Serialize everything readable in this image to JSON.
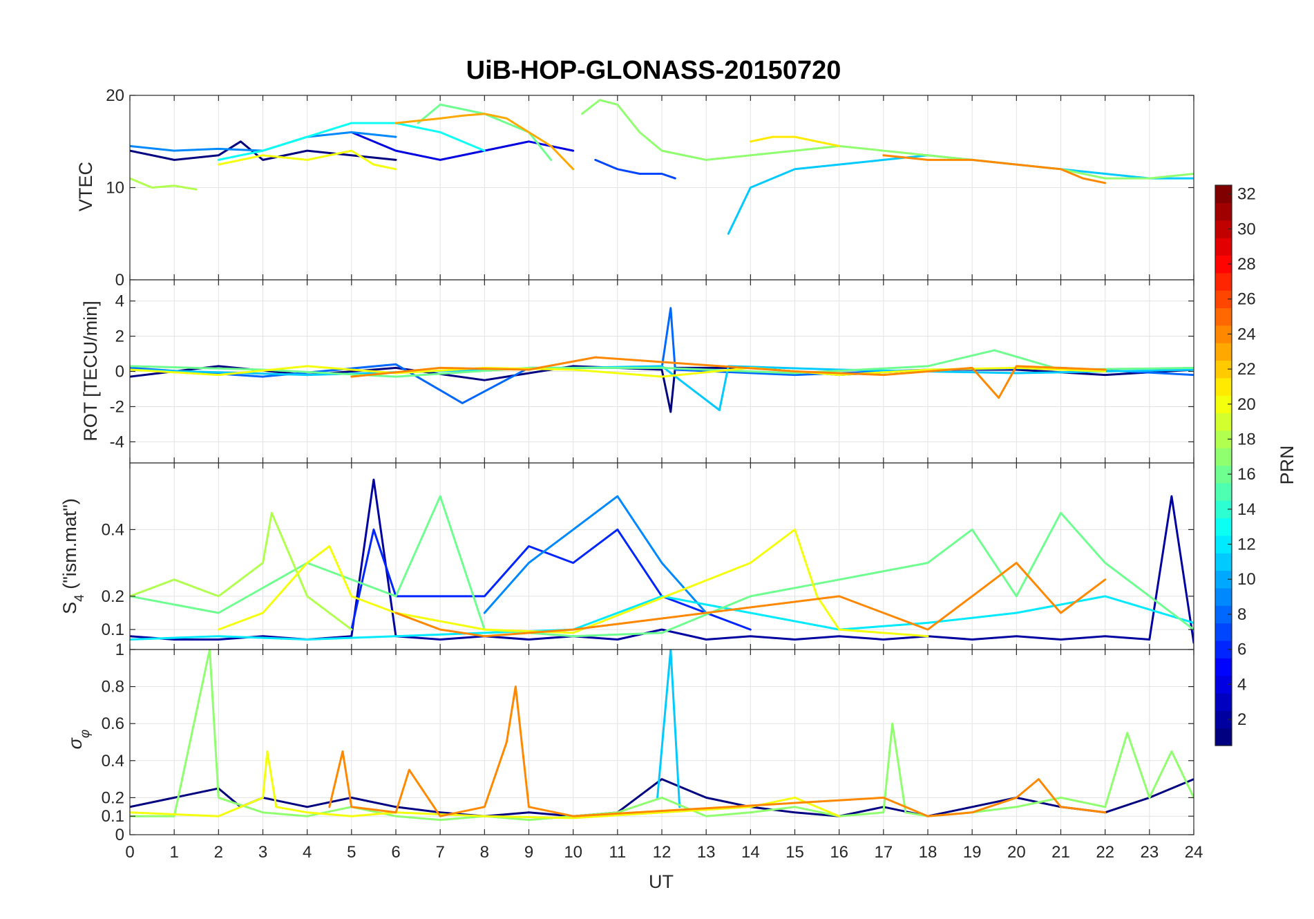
{
  "title": "UiB-HOP-GLONASS-20150720",
  "chart_data": [
    {
      "type": "line",
      "panel": "VTEC",
      "ylabel": "VTEC",
      "xlim": [
        0,
        24
      ],
      "ylim": [
        0,
        20
      ],
      "yticks": [
        0,
        10,
        20
      ],
      "series": [
        {
          "prn": 1,
          "x": [
            0,
            1,
            2,
            2.5,
            3,
            4,
            5,
            6
          ],
          "values": [
            14,
            13,
            13.5,
            15,
            13,
            14,
            13.5,
            13
          ]
        },
        {
          "prn": 4,
          "x": [
            5,
            6,
            7,
            8,
            9,
            10
          ],
          "values": [
            16,
            14,
            13,
            14,
            15,
            14
          ]
        },
        {
          "prn": 7,
          "x": [
            10.5,
            11,
            11.5,
            12,
            12.3
          ],
          "values": [
            13,
            12,
            11.5,
            11.5,
            11
          ]
        },
        {
          "prn": 9,
          "x": [
            0,
            1,
            2,
            3,
            4,
            5,
            6
          ],
          "values": [
            14.5,
            14,
            14.2,
            14,
            15.5,
            16,
            15.5
          ]
        },
        {
          "prn": 11,
          "x": [
            13.5,
            14,
            15,
            16,
            17,
            18,
            19,
            20,
            21,
            22,
            23,
            24
          ],
          "values": [
            5,
            10,
            12,
            12.5,
            13,
            13.5,
            13,
            12.5,
            12,
            11.5,
            11,
            11
          ]
        },
        {
          "prn": 13,
          "x": [
            2,
            3,
            4,
            5,
            6,
            7,
            8
          ],
          "values": [
            13,
            14,
            15.5,
            17,
            17,
            16,
            14
          ]
        },
        {
          "prn": 16,
          "x": [
            6.5,
            7,
            7.5,
            8,
            9,
            9.5
          ],
          "values": [
            17,
            19,
            18.5,
            18,
            16,
            13
          ]
        },
        {
          "prn": 17,
          "x": [
            10.2,
            10.6,
            11,
            11.5,
            12,
            13,
            14,
            15,
            16,
            17,
            18,
            19,
            20,
            21,
            22,
            23,
            24
          ],
          "values": [
            18,
            19.5,
            19,
            16,
            14,
            13,
            13.5,
            14,
            14.5,
            14,
            13.5,
            13,
            12.5,
            12,
            11,
            11,
            11.5
          ]
        },
        {
          "prn": 18,
          "x": [
            0,
            0.5,
            1,
            1.5
          ],
          "values": [
            11,
            10,
            10.2,
            9.8
          ]
        },
        {
          "prn": 20,
          "x": [
            2,
            3,
            4,
            5,
            5.5,
            6
          ],
          "values": [
            12.5,
            13.5,
            13,
            14,
            12.5,
            12
          ]
        },
        {
          "prn": 21,
          "x": [
            14,
            14.5,
            15,
            15.5,
            16
          ],
          "values": [
            15,
            15.5,
            15.5,
            15,
            14.5
          ]
        },
        {
          "prn": 23,
          "x": [
            6,
            7,
            7.5,
            8,
            8.5,
            9,
            9.5,
            10
          ],
          "values": [
            17,
            17.5,
            17.8,
            18,
            17.5,
            16,
            14.5,
            12
          ]
        },
        {
          "prn": 24,
          "x": [
            17,
            18,
            19,
            20,
            21,
            21.5,
            22
          ],
          "values": [
            13.5,
            13,
            13,
            12.5,
            12,
            11,
            10.5
          ]
        }
      ]
    },
    {
      "type": "line",
      "panel": "ROT",
      "ylabel": "ROT [TECU/min]",
      "xlim": [
        0,
        24
      ],
      "ylim": [
        -5.2,
        5.2
      ],
      "yticks": [
        -4,
        -2,
        0,
        2,
        4
      ],
      "series": [
        {
          "prn": 1,
          "x": [
            0,
            2,
            4,
            6,
            8,
            10,
            12,
            12.2,
            12.3,
            14,
            16,
            18,
            20,
            22,
            24
          ],
          "values": [
            -0.3,
            0.3,
            -0.2,
            0.2,
            -0.5,
            0.3,
            0.1,
            -2.3,
            0.2,
            0.2,
            -0.2,
            0.1,
            0.1,
            -0.2,
            0.1
          ]
        },
        {
          "prn": 8,
          "x": [
            0,
            3,
            6,
            7.5,
            9,
            12,
            12.2,
            12.3,
            15,
            18,
            21,
            24
          ],
          "values": [
            0.2,
            -0.3,
            0.4,
            -1.8,
            0.2,
            0.2,
            3.6,
            0.1,
            -0.2,
            0.1,
            0.2,
            -0.2
          ]
        },
        {
          "prn": 11,
          "x": [
            0,
            4,
            8,
            12,
            13.3,
            13.5,
            16,
            20,
            24
          ],
          "values": [
            0.1,
            -0.2,
            0.1,
            0.3,
            -2.2,
            0.3,
            0.1,
            -0.1,
            0.1
          ]
        },
        {
          "prn": 16,
          "x": [
            0,
            3,
            6,
            9,
            12,
            15,
            18,
            19.5,
            21,
            24
          ],
          "values": [
            0.3,
            0.1,
            -0.3,
            0.2,
            0.2,
            -0.1,
            0.3,
            1.2,
            0.1,
            0.2
          ]
        },
        {
          "prn": 20,
          "x": [
            0,
            2,
            4,
            6,
            8,
            10,
            12,
            14,
            16,
            18,
            20,
            22
          ],
          "values": [
            0.1,
            -0.2,
            0.3,
            -0.1,
            0.2,
            0.1,
            -0.3,
            0.2,
            -0.2,
            0.1,
            0.2,
            0.0
          ]
        },
        {
          "prn": 24,
          "x": [
            5,
            7,
            9,
            10.5,
            15,
            17,
            19,
            19.6,
            20,
            22
          ],
          "values": [
            -0.3,
            0.2,
            0.1,
            0.8,
            0.0,
            -0.2,
            0.2,
            -1.5,
            0.3,
            0.1
          ]
        }
      ]
    },
    {
      "type": "line",
      "panel": "S4",
      "ylabel": "S4 (\"ism.mat\")",
      "xlim": [
        0,
        24
      ],
      "ylim": [
        0.04,
        0.6
      ],
      "yticks": [
        0.1,
        0.2,
        0.4
      ],
      "series": [
        {
          "prn": 2,
          "x": [
            0,
            1,
            2,
            3,
            4,
            5,
            5.5,
            6,
            7,
            8,
            9,
            10,
            11,
            12,
            13,
            14,
            15,
            16,
            17,
            18,
            19,
            20,
            21,
            22,
            23,
            23.5,
            24
          ],
          "values": [
            0.08,
            0.07,
            0.07,
            0.08,
            0.07,
            0.08,
            0.55,
            0.08,
            0.07,
            0.08,
            0.07,
            0.08,
            0.07,
            0.1,
            0.07,
            0.08,
            0.07,
            0.08,
            0.07,
            0.08,
            0.07,
            0.08,
            0.07,
            0.08,
            0.07,
            0.5,
            0.06
          ]
        },
        {
          "prn": 6,
          "x": [
            5,
            5.5,
            6,
            8,
            9,
            10,
            11,
            12,
            13,
            14
          ],
          "values": [
            0.1,
            0.4,
            0.2,
            0.2,
            0.35,
            0.3,
            0.4,
            0.2,
            0.15,
            0.1
          ]
        },
        {
          "prn": 9,
          "x": [
            8,
            9,
            10,
            11,
            12,
            13
          ],
          "values": [
            0.15,
            0.3,
            0.4,
            0.5,
            0.3,
            0.15
          ]
        },
        {
          "prn": 12,
          "x": [
            0,
            2,
            4,
            6,
            8,
            10,
            12,
            14,
            16,
            18,
            20,
            22,
            24
          ],
          "values": [
            0.07,
            0.08,
            0.07,
            0.08,
            0.09,
            0.1,
            0.2,
            0.15,
            0.1,
            0.12,
            0.15,
            0.2,
            0.12
          ]
        },
        {
          "prn": 16,
          "x": [
            0,
            2,
            4,
            6,
            7,
            8,
            10,
            12,
            14,
            16,
            18,
            19,
            20,
            21,
            22,
            24
          ],
          "values": [
            0.2,
            0.15,
            0.3,
            0.2,
            0.5,
            0.1,
            0.08,
            0.09,
            0.2,
            0.25,
            0.3,
            0.4,
            0.2,
            0.45,
            0.3,
            0.1
          ]
        },
        {
          "prn": 18,
          "x": [
            0,
            1,
            2,
            3,
            3.2,
            4,
            5
          ],
          "values": [
            0.2,
            0.25,
            0.2,
            0.3,
            0.45,
            0.2,
            0.1
          ]
        },
        {
          "prn": 20,
          "x": [
            2,
            3,
            4,
            4.5,
            5,
            6,
            8,
            10,
            14,
            15,
            15.5,
            16,
            18
          ],
          "values": [
            0.1,
            0.15,
            0.3,
            0.35,
            0.2,
            0.15,
            0.1,
            0.09,
            0.3,
            0.4,
            0.2,
            0.1,
            0.08
          ]
        },
        {
          "prn": 24,
          "x": [
            6,
            7,
            8,
            9,
            10,
            16,
            17,
            18,
            19,
            20,
            21,
            22
          ],
          "values": [
            0.15,
            0.1,
            0.08,
            0.09,
            0.1,
            0.2,
            0.15,
            0.1,
            0.2,
            0.3,
            0.15,
            0.25
          ]
        }
      ]
    },
    {
      "type": "line",
      "panel": "sigma_phi",
      "ylabel": "σφ",
      "xlabel": "UT",
      "xlim": [
        0,
        24
      ],
      "ylim": [
        0,
        1
      ],
      "yticks": [
        0,
        0.1,
        0.2,
        0.4,
        0.6,
        0.8,
        1
      ],
      "xticks": [
        0,
        1,
        2,
        3,
        4,
        5,
        6,
        7,
        8,
        9,
        10,
        11,
        12,
        13,
        14,
        15,
        16,
        17,
        18,
        19,
        20,
        21,
        22,
        23,
        24
      ],
      "series": [
        {
          "prn": 1,
          "x": [
            0,
            1,
            2,
            2.5,
            3,
            4,
            5,
            6,
            7,
            8,
            9,
            10,
            11,
            12,
            13,
            14,
            15,
            16,
            17,
            18,
            19,
            20,
            21,
            22,
            23,
            24
          ],
          "values": [
            0.15,
            0.2,
            0.25,
            0.15,
            0.2,
            0.15,
            0.2,
            0.15,
            0.12,
            0.1,
            0.12,
            0.1,
            0.12,
            0.3,
            0.2,
            0.15,
            0.12,
            0.1,
            0.15,
            0.1,
            0.15,
            0.2,
            0.15,
            0.12,
            0.2,
            0.3
          ]
        },
        {
          "prn": 11,
          "x": [
            11.9,
            12.2,
            12.4
          ],
          "values": [
            0.2,
            1.0,
            0.15
          ]
        },
        {
          "prn": 17,
          "x": [
            0,
            1,
            1.8,
            2,
            3,
            4,
            5,
            6,
            7,
            8,
            9,
            10,
            11,
            12,
            13,
            14,
            15,
            16,
            17,
            17.2,
            17.5,
            18,
            19,
            20,
            21,
            22,
            22.5,
            23,
            23.5,
            24
          ],
          "values": [
            0.1,
            0.1,
            1.0,
            0.2,
            0.12,
            0.1,
            0.15,
            0.1,
            0.08,
            0.1,
            0.08,
            0.1,
            0.12,
            0.2,
            0.1,
            0.12,
            0.15,
            0.1,
            0.12,
            0.6,
            0.12,
            0.1,
            0.12,
            0.15,
            0.2,
            0.15,
            0.55,
            0.2,
            0.45,
            0.2
          ]
        },
        {
          "prn": 20,
          "x": [
            0,
            2,
            3,
            3.1,
            3.3,
            4,
            5,
            6,
            8,
            10,
            14,
            15,
            16
          ],
          "values": [
            0.12,
            0.1,
            0.2,
            0.45,
            0.15,
            0.12,
            0.1,
            0.12,
            0.1,
            0.09,
            0.15,
            0.2,
            0.1
          ]
        },
        {
          "prn": 24,
          "x": [
            4.5,
            4.8,
            5,
            6,
            6.3,
            7,
            8,
            8.5,
            8.7,
            9,
            10,
            17,
            18,
            19,
            20,
            20.5,
            21,
            22
          ],
          "values": [
            0.15,
            0.45,
            0.15,
            0.12,
            0.35,
            0.1,
            0.15,
            0.5,
            0.8,
            0.15,
            0.1,
            0.2,
            0.1,
            0.12,
            0.2,
            0.3,
            0.15,
            0.12
          ]
        }
      ]
    }
  ],
  "xlabel": "UT",
  "colorbar": {
    "label": "PRN",
    "min": 1,
    "max": 32,
    "ticks": [
      2,
      4,
      6,
      8,
      10,
      12,
      14,
      16,
      18,
      20,
      22,
      24,
      26,
      28,
      30,
      32
    ],
    "colormap": "jet"
  }
}
